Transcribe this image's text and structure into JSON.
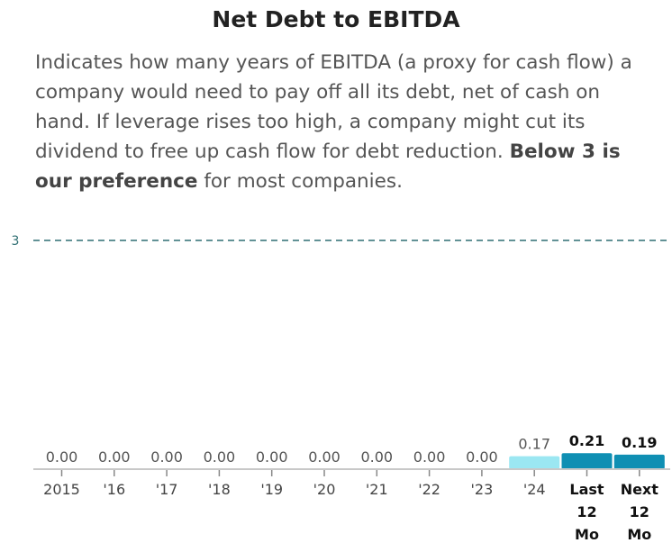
{
  "title": "Net Debt to EBITDA",
  "description": {
    "text_before": "Indicates how many years of EBITDA (a proxy for cash flow) a company would need to pay off all its debt, net of cash on hand. If leverage rises too high, a company might cut its dividend to free up cash flow for debt reduction. ",
    "bold": "Below 3 is our preference",
    "text_after": " for most companies."
  },
  "chart_data": {
    "type": "bar",
    "categories": [
      "2015",
      "'16",
      "'17",
      "'18",
      "'19",
      "'20",
      "'21",
      "'22",
      "'23",
      "'24",
      "Last 12 Mo",
      "Next 12 Mo"
    ],
    "values": [
      0.0,
      0.0,
      0.0,
      0.0,
      0.0,
      0.0,
      0.0,
      0.0,
      0.0,
      0.17,
      0.21,
      0.19
    ],
    "value_labels": [
      "0.00",
      "0.00",
      "0.00",
      "0.00",
      "0.00",
      "0.00",
      "0.00",
      "0.00",
      "0.00",
      "0.17",
      "0.21",
      "0.19"
    ],
    "highlighted": [
      false,
      false,
      false,
      false,
      false,
      false,
      false,
      false,
      false,
      false,
      true,
      true
    ],
    "reference_line": {
      "value": 3,
      "label": "3",
      "style": "dashed"
    },
    "ylim": [
      0,
      3.2
    ],
    "grid": false,
    "colors": {
      "bar": "#9be7f2",
      "bar_highlight": "#0f8fb3",
      "reference": "#2f6f73",
      "axis": "#c8c8c8"
    }
  }
}
